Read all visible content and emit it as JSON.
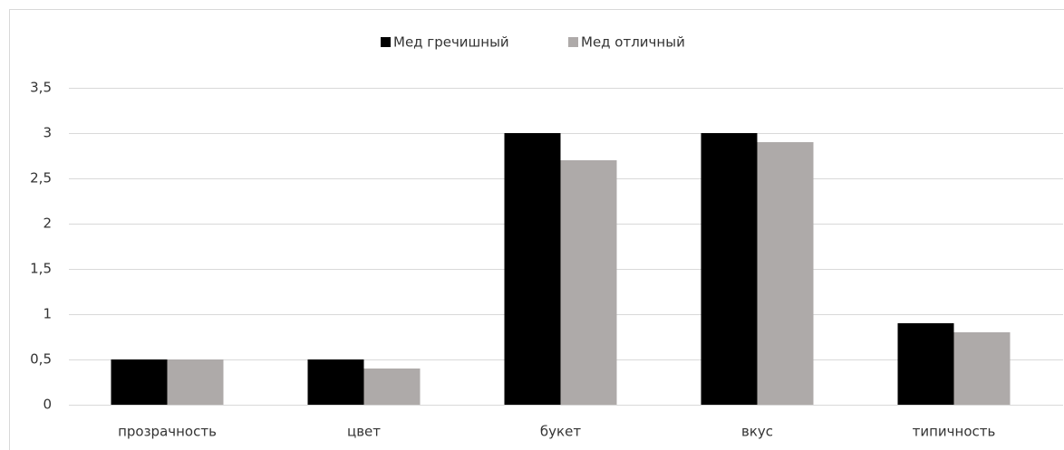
{
  "chart_data": {
    "type": "bar",
    "categories": [
      "прозрачность",
      "цвет",
      "букет",
      "вкус",
      "типичность"
    ],
    "series": [
      {
        "name": "Мед гречишный",
        "color": "#000000",
        "values": [
          0.5,
          0.5,
          3,
          3,
          0.9
        ]
      },
      {
        "name": "Мед отличный",
        "color": "#aeaaa9",
        "values": [
          0.5,
          0.4,
          2.7,
          2.9,
          0.8
        ]
      }
    ],
    "ylim": [
      0,
      3.5
    ],
    "yticks": [
      0,
      {
        "value": 0.5,
        "label": "0,5"
      },
      1,
      {
        "value": 1.5,
        "label": "1,5"
      },
      2,
      {
        "value": 2.5,
        "label": "2,5"
      },
      3,
      {
        "value": 3.5,
        "label": "3,5"
      }
    ],
    "grid": true,
    "legend": "top"
  }
}
